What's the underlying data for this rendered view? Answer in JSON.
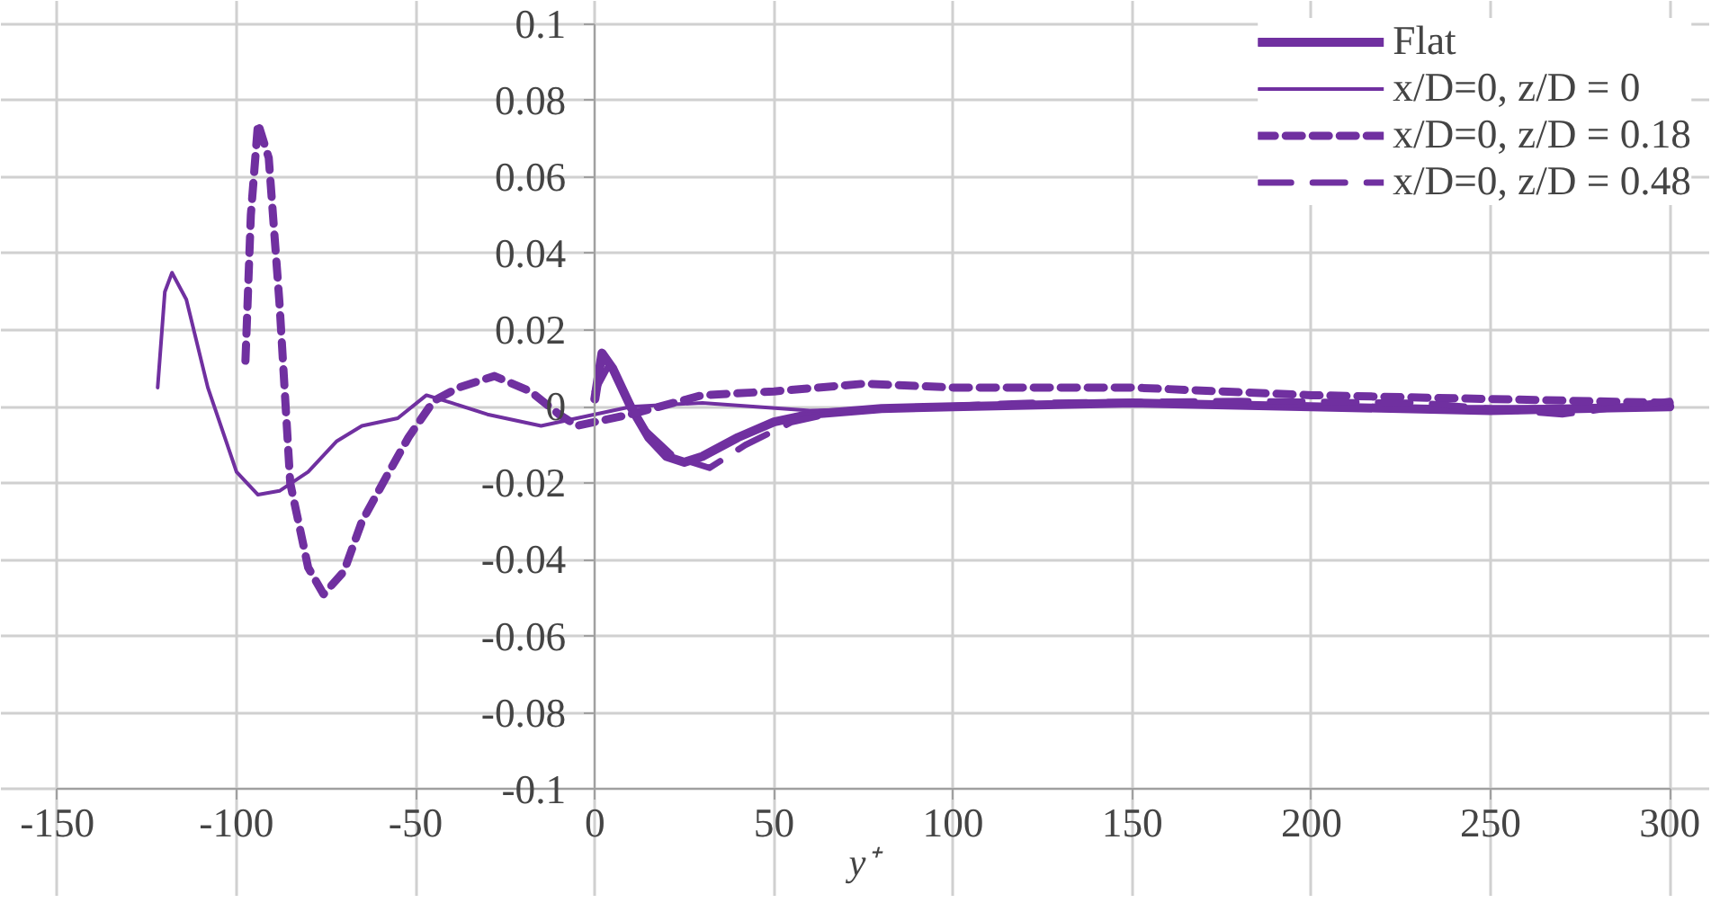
{
  "chart_data": {
    "type": "line",
    "xlabel": "y⁺",
    "xlim": [
      -150,
      300
    ],
    "xticks": [
      -150,
      -100,
      -50,
      0,
      50,
      100,
      150,
      200,
      250,
      300
    ],
    "ylim": [
      -0.1,
      0.1
    ],
    "yticks": [
      -0.1,
      -0.08,
      -0.06,
      -0.04,
      -0.02,
      0,
      0.02,
      0.04,
      0.06,
      0.08,
      0.1
    ],
    "grid": true,
    "legend": "top right",
    "series": [
      {
        "name": "Flat",
        "color": "#7030a0",
        "line_style": "solid",
        "x": [
          0,
          2,
          5,
          10,
          15,
          20,
          25,
          30,
          40,
          50,
          60,
          80,
          100,
          150,
          200,
          250,
          300
        ],
        "values": [
          0.002,
          0.014,
          0.01,
          0.0,
          -0.008,
          -0.013,
          -0.0145,
          -0.013,
          -0.008,
          -0.004,
          -0.002,
          -0.0005,
          0,
          0.001,
          0,
          -0.001,
          0
        ]
      },
      {
        "name": "x/D=0, z/D = 0",
        "color": "#7030a0",
        "line_style": "solid",
        "x": [
          -122,
          -120,
          -118,
          -114,
          -108,
          -100,
          -94,
          -88,
          -80,
          -72,
          -65,
          -55,
          -47,
          -40,
          -30,
          -15,
          -5,
          0,
          10,
          30,
          45,
          60,
          100,
          150,
          200,
          250,
          300
        ],
        "values": [
          0.005,
          0.03,
          0.035,
          0.028,
          0.005,
          -0.017,
          -0.023,
          -0.022,
          -0.017,
          -0.009,
          -0.005,
          -0.003,
          0.003,
          0.001,
          -0.002,
          -0.005,
          -0.003,
          -0.002,
          0,
          0.001,
          0,
          -0.001,
          0,
          0.001,
          0,
          0,
          0
        ]
      },
      {
        "name": "x/D=0, z/D = 0.18",
        "color": "#7030a0",
        "line_style": "dotted",
        "x": [
          -97.5,
          -96,
          -94,
          -91,
          -88,
          -85,
          -80,
          -75.7,
          -70,
          -65,
          -58,
          -52,
          -45,
          -38,
          -28,
          -18,
          -10,
          -5,
          0,
          10,
          30,
          50,
          75,
          100,
          150,
          200,
          250,
          300
        ],
        "values": [
          0.012,
          0.05,
          0.074,
          0.065,
          0.027,
          -0.02,
          -0.042,
          -0.049,
          -0.043,
          -0.03,
          -0.018,
          -0.008,
          0.0015,
          0.005,
          0.008,
          0.004,
          -0.002,
          -0.005,
          -0.004,
          -0.002,
          0.003,
          0.004,
          0.006,
          0.005,
          0.005,
          0.003,
          0.002,
          0.001
        ]
      },
      {
        "name": "x/D=0, z/D = 0.48",
        "color": "#7030a0",
        "line_style": "dashed",
        "x": [
          0,
          4,
          8,
          14,
          22,
          32,
          42,
          55,
          70,
          120,
          180,
          230,
          270,
          300
        ],
        "values": [
          0.004,
          0.011,
          0.004,
          -0.006,
          -0.013,
          -0.016,
          -0.01,
          -0.004,
          -0.001,
          0.001,
          0.0015,
          0.001,
          -0.002,
          0.0015
        ]
      }
    ]
  }
}
